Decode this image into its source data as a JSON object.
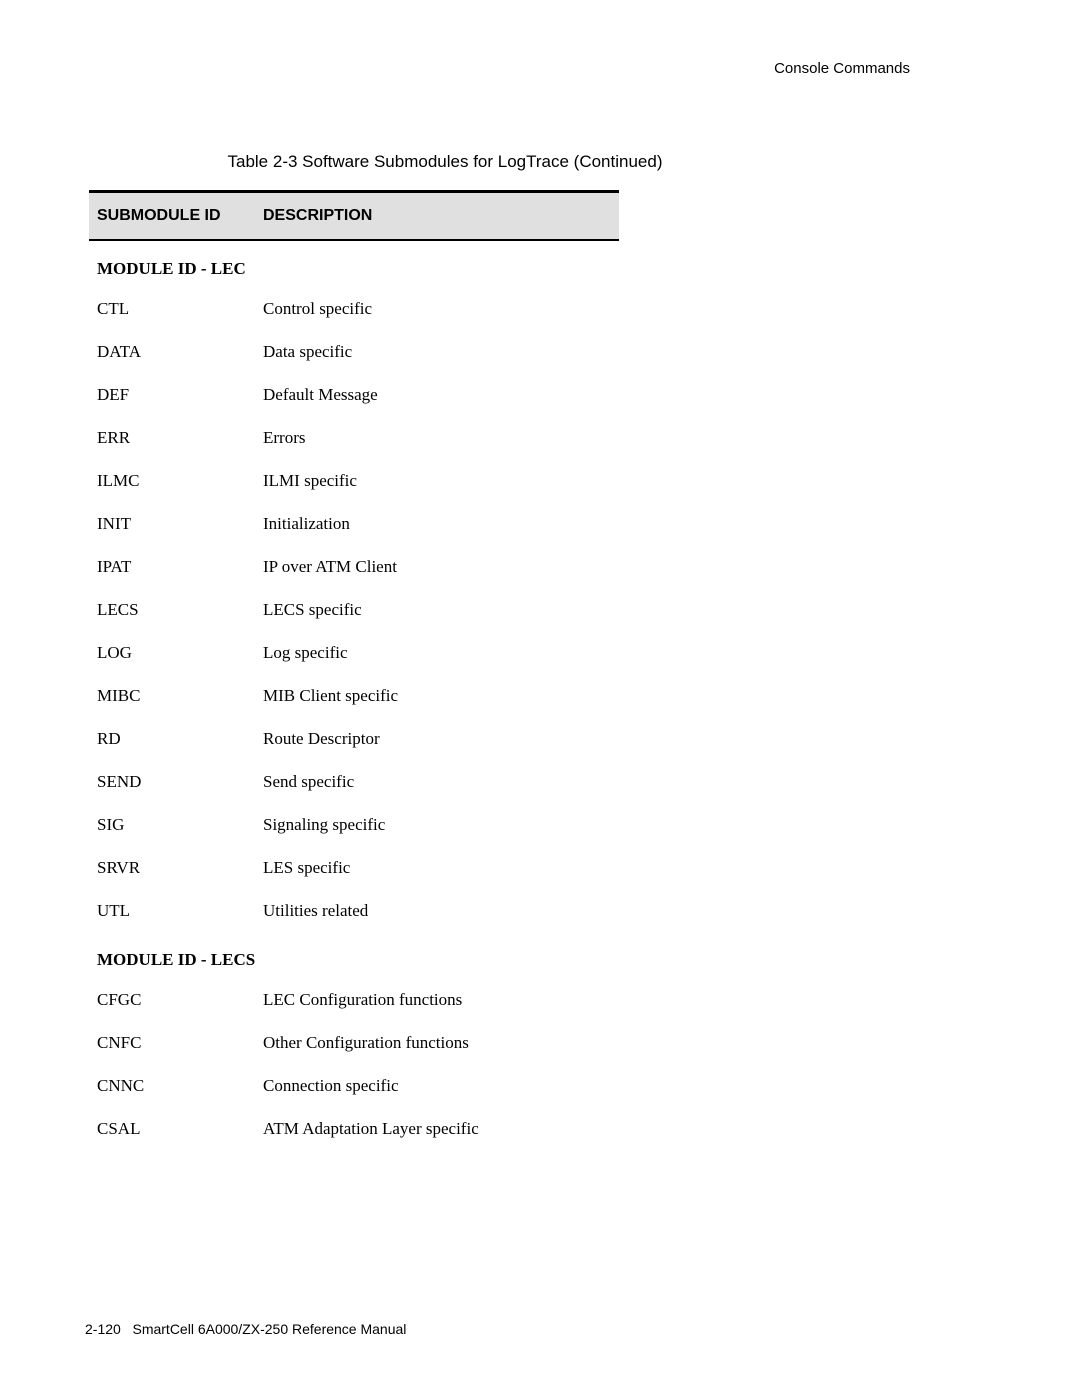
{
  "header": {
    "section_title": "Console Commands"
  },
  "table": {
    "caption": "Table 2-3 Software Submodules for LogTrace (Continued)",
    "columns": {
      "col1": "SUBMODULE ID",
      "col2": "DESCRIPTION"
    },
    "sections": [
      {
        "title": "MODULE ID - LEC",
        "rows": [
          {
            "id": "CTL",
            "desc": "Control specific"
          },
          {
            "id": "DATA",
            "desc": "Data specific"
          },
          {
            "id": "DEF",
            "desc": "Default Message"
          },
          {
            "id": "ERR",
            "desc": "Errors"
          },
          {
            "id": "ILMC",
            "desc": "ILMI specific"
          },
          {
            "id": "INIT",
            "desc": "Initialization"
          },
          {
            "id": "IPAT",
            "desc": "IP over ATM Client"
          },
          {
            "id": "LECS",
            "desc": "LECS specific"
          },
          {
            "id": "LOG",
            "desc": "Log specific"
          },
          {
            "id": "MIBC",
            "desc": "MIB Client specific"
          },
          {
            "id": "RD",
            "desc": "Route Descriptor"
          },
          {
            "id": "SEND",
            "desc": "Send specific"
          },
          {
            "id": "SIG",
            "desc": "Signaling specific"
          },
          {
            "id": "SRVR",
            "desc": "LES specific"
          },
          {
            "id": "UTL",
            "desc": "Utilities related"
          }
        ]
      },
      {
        "title": "MODULE ID - LECS",
        "rows": [
          {
            "id": "CFGC",
            "desc": "LEC Configuration functions"
          },
          {
            "id": "CNFC",
            "desc": "Other Configuration functions"
          },
          {
            "id": "CNNC",
            "desc": "Connection specific"
          },
          {
            "id": "CSAL",
            "desc": "ATM Adaptation Layer specific"
          }
        ]
      }
    ]
  },
  "footer": {
    "page_number": "2-120",
    "manual_title": "SmartCell 6A000/ZX-250 Reference Manual"
  }
}
